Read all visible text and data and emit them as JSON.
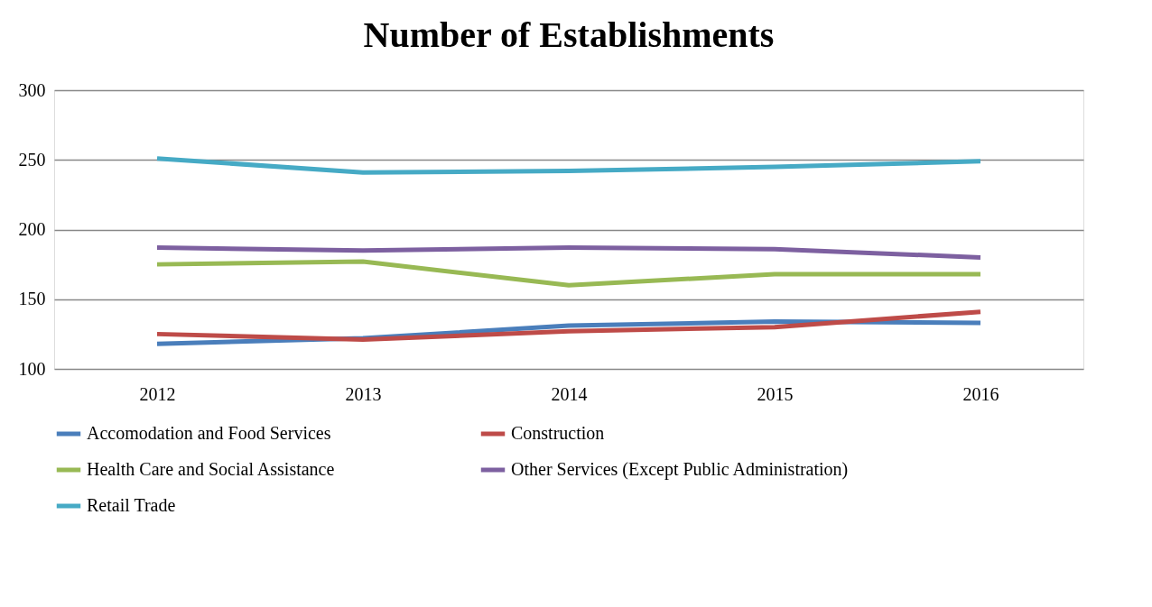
{
  "chart_data": {
    "type": "line",
    "title": "Number of Establishments",
    "categories": [
      "2012",
      "2013",
      "2014",
      "2015",
      "2016"
    ],
    "series": [
      {
        "name": "Accomodation and Food Services",
        "color": "#4a7ebb",
        "values": [
          118,
          122,
          131,
          134,
          133
        ]
      },
      {
        "name": "Construction",
        "color": "#be4b48",
        "values": [
          125,
          121,
          127,
          130,
          141
        ]
      },
      {
        "name": "Health Care and Social Assistance",
        "color": "#98b954",
        "values": [
          175,
          177,
          160,
          168,
          168
        ]
      },
      {
        "name": "Other Services (Except Public Administration)",
        "color": "#7d60a0",
        "values": [
          187,
          185,
          187,
          186,
          180
        ]
      },
      {
        "name": "Retail Trade",
        "color": "#46aac5",
        "values": [
          251,
          241,
          242,
          245,
          249
        ]
      }
    ],
    "ylim": [
      100,
      300
    ],
    "yticks": [
      100,
      150,
      200,
      250,
      300
    ],
    "grid": "y",
    "legend": "bottom",
    "marker": "none",
    "line_style": "solid"
  }
}
